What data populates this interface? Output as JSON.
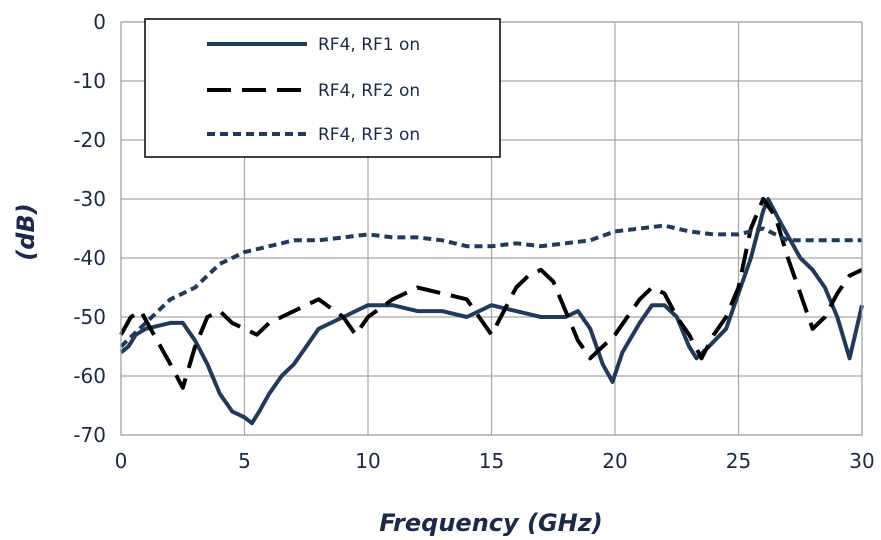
{
  "chart_data": {
    "type": "line",
    "title": "",
    "xlabel": "Frequency (GHz)",
    "ylabel": "(dB)",
    "xlim": [
      0,
      30
    ],
    "ylim": [
      -70,
      0
    ],
    "xticks": [
      0,
      5,
      10,
      15,
      20,
      25,
      30
    ],
    "yticks": [
      0,
      -10,
      -20,
      -30,
      -40,
      -50,
      -60,
      -70
    ],
    "grid": true,
    "legend_position": "top-left",
    "series": [
      {
        "name": "RF4, RF1 on",
        "color": "#1f3a5c",
        "style": "solid",
        "x": [
          0,
          0.3,
          0.6,
          1.0,
          2.0,
          2.5,
          3.0,
          3.5,
          4.0,
          4.5,
          5.0,
          5.3,
          5.6,
          6.0,
          6.5,
          7.0,
          7.5,
          8.0,
          9.0,
          10.0,
          11.0,
          12.0,
          13.0,
          14.0,
          15.0,
          16.0,
          17.0,
          18.0,
          18.5,
          19.0,
          19.5,
          19.9,
          20.3,
          21.0,
          21.5,
          22.0,
          22.5,
          23.0,
          23.3,
          23.8,
          24.5,
          25.0,
          25.5,
          26.0,
          26.2,
          26.7,
          27.5,
          28.0,
          28.5,
          29.0,
          29.5,
          30.0
        ],
        "y": [
          -56,
          -55,
          -53,
          -52,
          -51,
          -51,
          -54,
          -58,
          -63,
          -66,
          -67,
          -68,
          -66,
          -63,
          -60,
          -58,
          -55,
          -52,
          -50,
          -48,
          -48,
          -49,
          -49,
          -50,
          -48,
          -49,
          -50,
          -50,
          -49,
          -52,
          -58,
          -61,
          -56,
          -51,
          -48,
          -48,
          -50,
          -55,
          -57,
          -55,
          -52,
          -46,
          -40,
          -32,
          -30,
          -34,
          -40,
          -42,
          -45,
          -50,
          -57,
          -48
        ]
      },
      {
        "name": "RF4, RF2 on",
        "color": "#000000",
        "style": "long-dash",
        "x": [
          0,
          0.4,
          0.8,
          1.2,
          1.6,
          2.0,
          2.5,
          3.0,
          3.5,
          4.0,
          4.5,
          5.0,
          5.5,
          6.0,
          6.5,
          7.0,
          8.0,
          9.0,
          9.5,
          10.0,
          11.0,
          12.0,
          13.0,
          14.0,
          14.5,
          15.0,
          15.5,
          16.0,
          16.5,
          17.0,
          17.5,
          18.0,
          18.5,
          19.0,
          19.5,
          20.0,
          20.5,
          21.0,
          21.5,
          22.0,
          22.5,
          23.0,
          23.5,
          24.0,
          24.5,
          25.0,
          25.5,
          26.0,
          26.5,
          27.0,
          27.5,
          28.0,
          28.5,
          29.0,
          29.5,
          30.0
        ],
        "y": [
          -53,
          -50,
          -49,
          -52,
          -55,
          -58,
          -62,
          -55,
          -50,
          -49,
          -51,
          -52,
          -53,
          -51,
          -50,
          -49,
          -47,
          -50,
          -53,
          -50,
          -47,
          -45,
          -46,
          -47,
          -50,
          -53,
          -49,
          -45,
          -43,
          -42,
          -44,
          -49,
          -54,
          -57,
          -55,
          -53,
          -50,
          -47,
          -45,
          -46,
          -50,
          -53,
          -57,
          -53,
          -50,
          -45,
          -35,
          -30,
          -33,
          -40,
          -46,
          -52,
          -50,
          -46,
          -43,
          -42
        ]
      },
      {
        "name": "RF4, RF3 on",
        "color": "#1f3a5c",
        "style": "short-dash",
        "x": [
          0,
          0.5,
          1.0,
          1.5,
          2.0,
          2.5,
          3.0,
          3.5,
          4.0,
          4.5,
          5.0,
          5.5,
          6.0,
          6.5,
          7.0,
          8.0,
          9.0,
          10.0,
          11.0,
          12.0,
          13.0,
          14.0,
          15.0,
          16.0,
          17.0,
          18.0,
          19.0,
          20.0,
          21.0,
          22.0,
          23.0,
          24.0,
          25.0,
          25.5,
          26.0,
          26.5,
          27.0,
          27.5,
          28.0,
          29.0,
          30.0
        ],
        "y": [
          -55,
          -53,
          -51,
          -49,
          -47,
          -46,
          -45,
          -43,
          -41,
          -40,
          -39,
          -38.5,
          -38,
          -37.5,
          -37,
          -37,
          -36.5,
          -36,
          -36.5,
          -36.5,
          -37,
          -38,
          -38,
          -37.5,
          -38,
          -37.5,
          -37,
          -35.5,
          -35,
          -34.5,
          -35.5,
          -36,
          -36,
          -35.5,
          -35,
          -36,
          -37,
          -37,
          -37,
          -37,
          -37
        ]
      }
    ]
  }
}
